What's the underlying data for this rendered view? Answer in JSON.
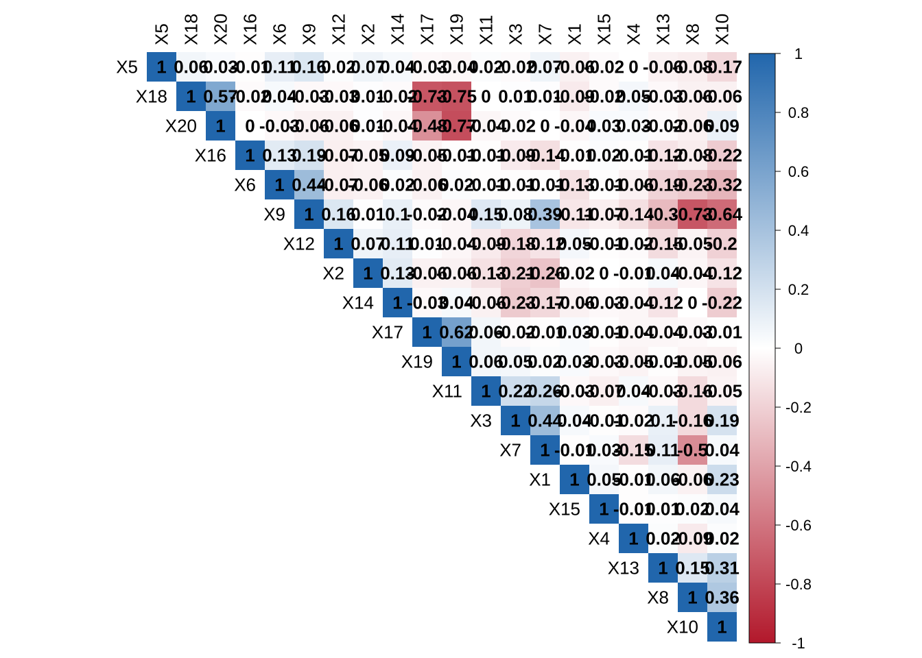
{
  "chart_data": {
    "type": "heatmap",
    "variant": "upper-triangular correlation matrix",
    "variables": [
      "X5",
      "X18",
      "X20",
      "X16",
      "X6",
      "X9",
      "X12",
      "X2",
      "X14",
      "X17",
      "X19",
      "X11",
      "X3",
      "X7",
      "X1",
      "X15",
      "X4",
      "X13",
      "X8",
      "X10"
    ],
    "values": [
      [
        1,
        0.06,
        0.03,
        -0.01,
        0.11,
        0.16,
        0.02,
        0.07,
        0.04,
        -0.03,
        -0.04,
        0.02,
        -0.02,
        0.07,
        -0.06,
        -0.02,
        0,
        -0.06,
        -0.08,
        -0.17
      ],
      [
        null,
        1,
        0.57,
        -0.02,
        0.04,
        -0.03,
        -0.03,
        0.01,
        -0.02,
        -0.73,
        -0.75,
        0,
        0.01,
        0.01,
        -0.09,
        -0.02,
        0.05,
        -0.03,
        -0.06,
        -0.06
      ],
      [
        null,
        null,
        1,
        0,
        -0.03,
        -0.06,
        -0.06,
        0.01,
        -0.04,
        -0.48,
        -0.77,
        -0.04,
        -0.02,
        0,
        -0.04,
        0.03,
        0.03,
        -0.02,
        -0.06,
        0.09
      ],
      [
        null,
        null,
        null,
        1,
        0.13,
        0.19,
        -0.07,
        -0.05,
        0.09,
        -0.05,
        -0.01,
        -0.01,
        -0.09,
        -0.14,
        -0.01,
        0.02,
        -0.01,
        -0.12,
        -0.08,
        -0.22
      ],
      [
        null,
        null,
        null,
        null,
        1,
        0.44,
        -0.07,
        -0.06,
        0.02,
        -0.06,
        0.02,
        -0.01,
        -0.01,
        -0.01,
        -0.13,
        -0.01,
        -0.06,
        -0.19,
        -0.23,
        -0.32
      ],
      [
        null,
        null,
        null,
        null,
        null,
        1,
        0.16,
        0.01,
        0.1,
        -0.02,
        -0.04,
        0.15,
        0.08,
        0.39,
        -0.11,
        -0.07,
        -0.14,
        -0.3,
        -0.73,
        -0.64
      ],
      [
        null,
        null,
        null,
        null,
        null,
        null,
        1,
        0.07,
        0.11,
        0.01,
        -0.04,
        -0.09,
        -0.18,
        -0.12,
        0.05,
        -0.01,
        -0.02,
        -0.15,
        -0.05,
        -0.2
      ],
      [
        null,
        null,
        null,
        null,
        null,
        null,
        null,
        1,
        0.13,
        -0.06,
        -0.06,
        -0.13,
        -0.21,
        -0.26,
        -0.02,
        0,
        -0.01,
        0.04,
        -0.04,
        -0.12
      ],
      [
        null,
        null,
        null,
        null,
        null,
        null,
        null,
        null,
        1,
        -0.03,
        0.04,
        -0.06,
        -0.23,
        -0.17,
        -0.06,
        -0.03,
        -0.04,
        -0.12,
        0,
        -0.22
      ],
      [
        null,
        null,
        null,
        null,
        null,
        null,
        null,
        null,
        null,
        1,
        0.62,
        0.06,
        -0.02,
        -0.01,
        0.03,
        -0.01,
        -0.04,
        -0.04,
        -0.03,
        -0.01
      ],
      [
        null,
        null,
        null,
        null,
        null,
        null,
        null,
        null,
        null,
        null,
        1,
        0.06,
        0.05,
        0.02,
        0.03,
        -0.03,
        -0.05,
        -0.01,
        -0.05,
        -0.06
      ],
      [
        null,
        null,
        null,
        null,
        null,
        null,
        null,
        null,
        null,
        null,
        null,
        1,
        0.22,
        0.26,
        -0.03,
        -0.07,
        0.04,
        -0.03,
        -0.16,
        -0.05
      ],
      [
        null,
        null,
        null,
        null,
        null,
        null,
        null,
        null,
        null,
        null,
        null,
        null,
        1,
        0.44,
        0.04,
        -0.01,
        -0.02,
        0.1,
        -0.16,
        0.19
      ],
      [
        null,
        null,
        null,
        null,
        null,
        null,
        null,
        null,
        null,
        null,
        null,
        null,
        null,
        1,
        -0.01,
        0.03,
        -0.15,
        0.11,
        -0.5,
        0.04
      ],
      [
        null,
        null,
        null,
        null,
        null,
        null,
        null,
        null,
        null,
        null,
        null,
        null,
        null,
        null,
        1,
        0.05,
        -0.01,
        0.06,
        -0.06,
        0.23
      ],
      [
        null,
        null,
        null,
        null,
        null,
        null,
        null,
        null,
        null,
        null,
        null,
        null,
        null,
        null,
        null,
        1,
        -0.01,
        0.01,
        0.02,
        0.04
      ],
      [
        null,
        null,
        null,
        null,
        null,
        null,
        null,
        null,
        null,
        null,
        null,
        null,
        null,
        null,
        null,
        null,
        1,
        0.02,
        -0.09,
        0.02
      ],
      [
        null,
        null,
        null,
        null,
        null,
        null,
        null,
        null,
        null,
        null,
        null,
        null,
        null,
        null,
        null,
        null,
        null,
        1,
        0.15,
        0.31
      ],
      [
        null,
        null,
        null,
        null,
        null,
        null,
        null,
        null,
        null,
        null,
        null,
        null,
        null,
        null,
        null,
        null,
        null,
        null,
        1,
        0.36
      ],
      [
        null,
        null,
        null,
        null,
        null,
        null,
        null,
        null,
        null,
        null,
        null,
        null,
        null,
        null,
        null,
        null,
        null,
        null,
        null,
        1
      ]
    ],
    "color_scale": {
      "range": [
        -1,
        1
      ],
      "low_color": "#B2182B",
      "mid_color": "#FFFFFF",
      "high_color": "#2166AC",
      "ticks": [
        "1",
        "0.8",
        "0.6",
        "0.4",
        "0.2",
        "0",
        "-0.2",
        "-0.4",
        "-0.6",
        "-0.8",
        "-1"
      ]
    },
    "legend": "right"
  }
}
